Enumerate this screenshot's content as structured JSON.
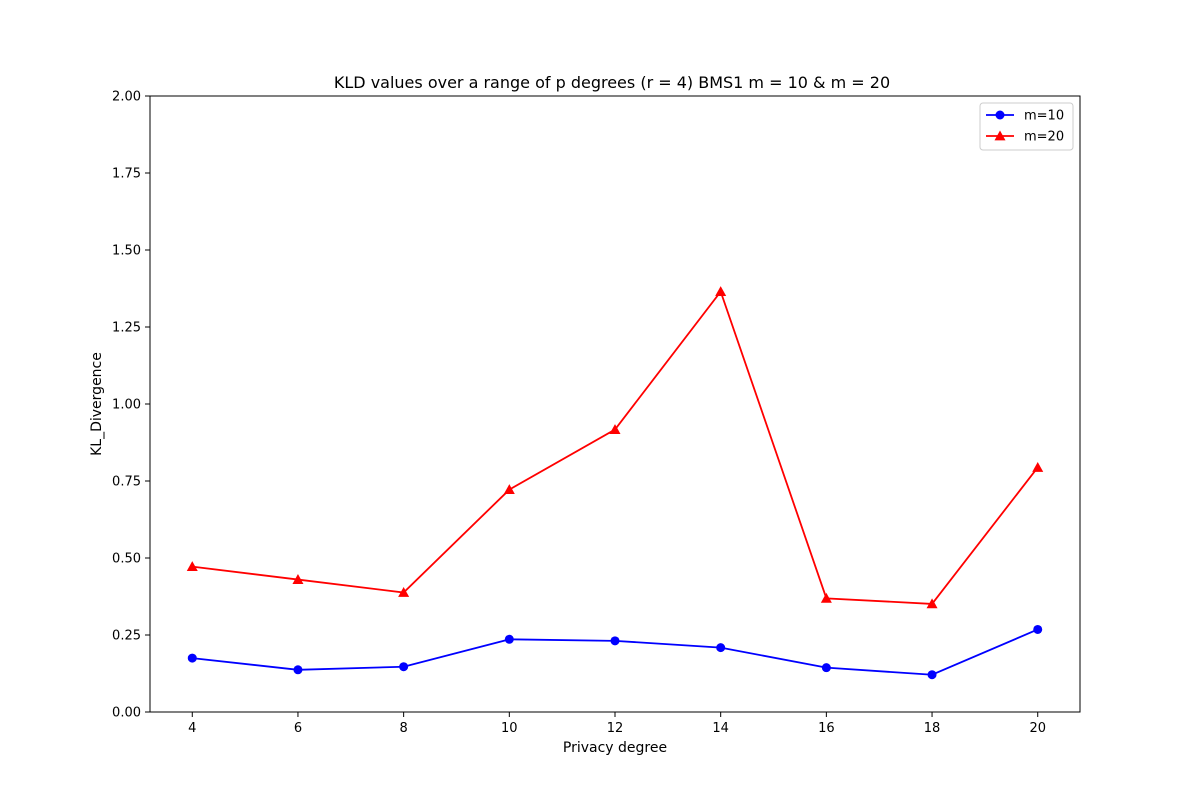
{
  "chart_data": {
    "type": "line",
    "title": "KLD values over a range of p degrees (r = 4) BMS1 m = 10 & m = 20",
    "xlabel": "Privacy degree",
    "ylabel": "KL_Divergence",
    "x": [
      4,
      6,
      8,
      10,
      12,
      14,
      16,
      18,
      20
    ],
    "xticks": [
      "4",
      "6",
      "8",
      "10",
      "12",
      "14",
      "16",
      "18",
      "20"
    ],
    "yticks": [
      "0.00",
      "0.25",
      "0.50",
      "0.75",
      "1.00",
      "1.25",
      "1.50",
      "1.75",
      "2.00"
    ],
    "ylim": [
      0,
      2
    ],
    "xlim": [
      3.2,
      20.8
    ],
    "grid": false,
    "legend_position": "top-right",
    "series": [
      {
        "name": "m=10",
        "color": "#0000ff",
        "marker": "circle",
        "values": [
          0.175,
          0.137,
          0.147,
          0.236,
          0.231,
          0.209,
          0.144,
          0.121,
          0.268
        ]
      },
      {
        "name": "m=20",
        "color": "#ff0000",
        "marker": "triangle",
        "values": [
          0.472,
          0.43,
          0.388,
          0.722,
          0.917,
          1.365,
          0.369,
          0.351,
          0.794
        ]
      }
    ]
  }
}
